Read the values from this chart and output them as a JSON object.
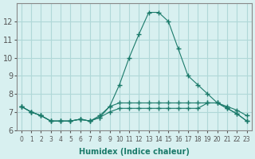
{
  "xlabel": "Humidex (Indice chaleur)",
  "ylabel": "",
  "background_color": "#d8f0f0",
  "grid_color": "#b0d8d8",
  "line_color": "#1a7a6a",
  "hours": [
    0,
    1,
    2,
    3,
    4,
    5,
    6,
    7,
    8,
    9,
    10,
    11,
    12,
    13,
    14,
    15,
    16,
    17,
    18,
    19,
    20,
    21,
    22,
    23
  ],
  "line1": [
    7.3,
    7.0,
    6.8,
    6.5,
    6.5,
    6.5,
    6.6,
    6.5,
    6.7,
    7.3,
    8.5,
    10.0,
    11.3,
    12.5,
    12.5,
    12.0,
    10.5,
    9.0,
    8.5,
    8.0,
    7.5,
    7.2,
    6.9,
    6.5
  ],
  "line2": [
    7.3,
    7.0,
    6.8,
    6.5,
    6.5,
    6.5,
    6.6,
    6.5,
    6.8,
    7.3,
    7.5,
    7.5,
    7.5,
    7.5,
    7.5,
    7.5,
    7.5,
    7.5,
    7.5,
    7.5,
    7.5,
    7.3,
    7.1,
    6.8
  ],
  "line3": [
    7.3,
    7.0,
    6.8,
    6.5,
    6.5,
    6.5,
    6.6,
    6.5,
    6.7,
    7.0,
    7.2,
    7.2,
    7.2,
    7.2,
    7.2,
    7.2,
    7.2,
    7.2,
    7.2,
    7.5,
    7.5,
    7.2,
    6.9,
    6.5
  ],
  "ylim": [
    6.0,
    13.0
  ],
  "yticks": [
    6,
    7,
    8,
    9,
    10,
    11,
    12
  ],
  "xlim": [
    -0.5,
    23.5
  ]
}
